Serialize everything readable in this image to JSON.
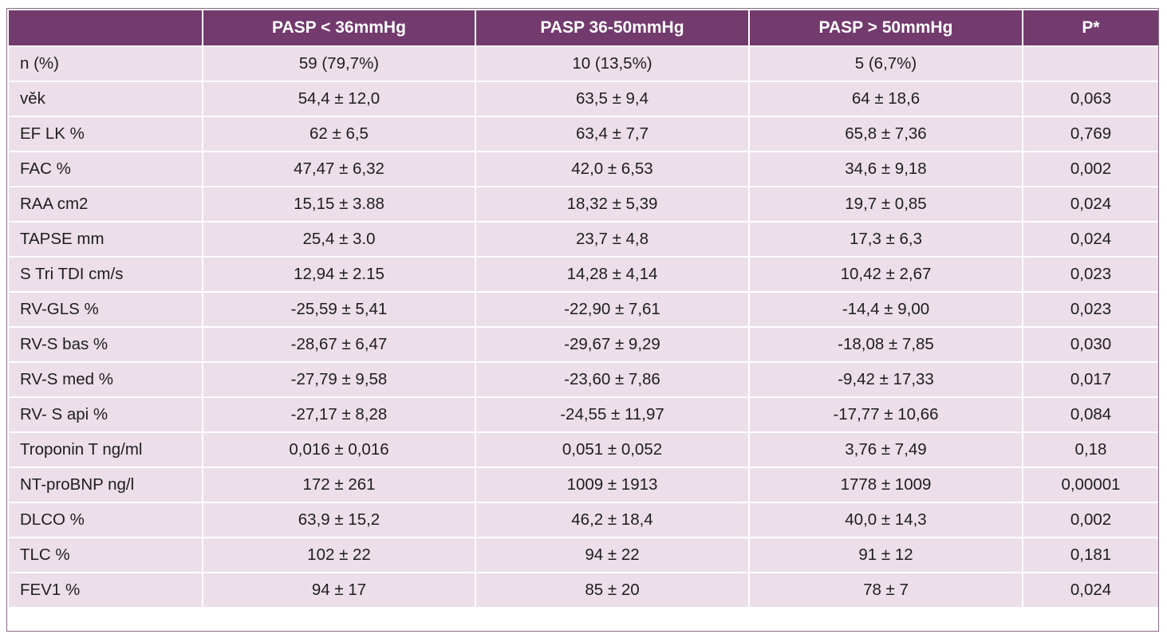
{
  "table": {
    "headers": [
      "",
      "PASP < 36mmHg",
      "PASP 36-50mmHg",
      "PASP  > 50mmHg",
      "P*"
    ],
    "rows": [
      [
        "n (%)",
        "59 (79,7%)",
        "10 (13,5%)",
        "5 (6,7%)",
        ""
      ],
      [
        "věk",
        "54,4 ± 12,0",
        "63,5 ± 9,4",
        "64 ± 18,6",
        "0,063"
      ],
      [
        "EF LK %",
        "62 ± 6,5",
        "63,4 ± 7,7",
        "65,8 ± 7,36",
        "0,769"
      ],
      [
        "FAC %",
        "47,47 ± 6,32",
        "42,0 ± 6,53",
        "34,6 ± 9,18",
        "0,002"
      ],
      [
        "RAA cm2",
        "15,15 ± 3.88",
        "18,32 ± 5,39",
        "19,7 ± 0,85",
        "0,024"
      ],
      [
        "TAPSE mm",
        "25,4 ± 3.0",
        "23,7 ± 4,8",
        "17,3 ± 6,3",
        "0,024"
      ],
      [
        "S Tri TDI cm/s",
        "12,94 ± 2.15",
        "14,28 ± 4,14",
        "10,42 ± 2,67",
        "0,023"
      ],
      [
        "RV-GLS  %",
        "-25,59 ± 5,41",
        "-22,90 ± 7,61",
        "-14,4 ± 9,00",
        "0,023"
      ],
      [
        "RV-S bas %",
        "-28,67 ± 6,47",
        "-29,67 ± 9,29",
        "-18,08 ± 7,85",
        "0,030"
      ],
      [
        "RV-S med %",
        "-27,79 ± 9,58",
        "-23,60 ± 7,86",
        "-9,42 ± 17,33",
        "0,017"
      ],
      [
        "RV- S api  %",
        "-27,17 ± 8,28",
        "-24,55 ± 11,97",
        "-17,77 ± 10,66",
        "0,084"
      ],
      [
        "Troponin T ng/ml",
        "0,016 ± 0,016",
        "0,051 ± 0,052",
        "3,76 ± 7,49",
        "0,18"
      ],
      [
        "NT-proBNP ng/l",
        "172 ± 261",
        "1009 ± 1913",
        "1778 ± 1009",
        "0,00001"
      ],
      [
        "DLCO %",
        "63,9 ± 15,2",
        "46,2 ± 18,4",
        "40,0 ± 14,3",
        "0,002"
      ],
      [
        "TLC %",
        "102 ± 22",
        "94 ± 22",
        "91 ± 12",
        "0,181"
      ],
      [
        "FEV1 %",
        "94 ± 17",
        "85 ± 20",
        "78 ± 7",
        "0,024"
      ]
    ]
  },
  "colors": {
    "header_bg": "#733a6e",
    "header_text": "#ffffff",
    "cell_bg": "#ecdfe9",
    "cell_text": "#1e1e1e",
    "grid_lines": "#ffffff"
  }
}
